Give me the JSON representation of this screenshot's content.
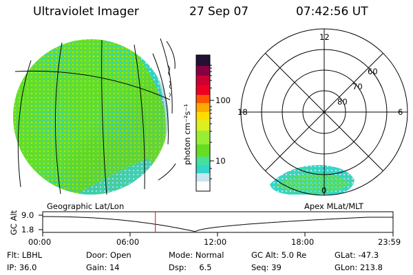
{
  "header": {
    "instrument": "Ultraviolet Imager",
    "date": "27 Sep 07",
    "time": "07:42:56 UT"
  },
  "colorbar": {
    "unit_label": "photon cm⁻²s⁻¹",
    "ticks": [
      "100",
      "10"
    ],
    "scale": "log"
  },
  "polar_plot": {
    "mlt_labels": [
      "12",
      "18",
      "6",
      "0"
    ],
    "lat_labels": [
      "60",
      "70",
      "80"
    ]
  },
  "panel_labels": {
    "left": "Geographic Lat/Lon",
    "right": "Apex MLat/MLT"
  },
  "altitude_strip": {
    "axis_label": "GC Alt",
    "ticks": [
      "9.0",
      "1.8"
    ],
    "time_ticks": [
      "00:00",
      "06:00",
      "12:00",
      "18:00",
      "23:59"
    ],
    "current_time_marker_hours": 7.72
  },
  "footer": {
    "row1": [
      {
        "label": "Flt:",
        "value": "LBHL"
      },
      {
        "label": "Door:",
        "value": "Open"
      },
      {
        "label": "Mode:",
        "value": "Normal"
      },
      {
        "label": "GC Alt:",
        "value": "5.0 Re"
      },
      {
        "label": "GLat:",
        "value": "-47.3"
      }
    ],
    "row2": [
      {
        "label": "IP:",
        "value": "36.0"
      },
      {
        "label": "Gain:",
        "value": "14"
      },
      {
        "label": "Dsp:",
        "value": "6.5"
      },
      {
        "label": "Seq:",
        "value": "39"
      },
      {
        "label": "GLon:",
        "value": "213.8"
      }
    ]
  },
  "colors": {
    "green": "#66dd22",
    "cyan": "#33d6c8",
    "paleblue": "#c8e6f0"
  }
}
